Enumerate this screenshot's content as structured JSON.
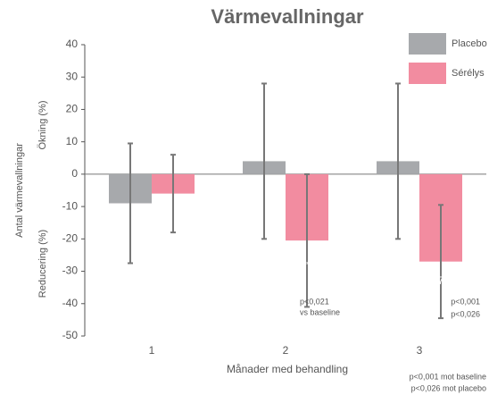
{
  "chart_data": {
    "type": "bar",
    "title": "Värmevallningar",
    "y_label": "Antal värmevallningar",
    "y_label_upper": "Ökning (%)",
    "y_label_lower": "Reducering (%)",
    "x_label": "Månader med behandling",
    "categories": [
      "1",
      "2",
      "3"
    ],
    "series": [
      {
        "name": "Placebo",
        "color": "#a7a9ac",
        "values": [
          -9,
          4,
          4
        ],
        "errors": [
          18.5,
          24,
          24
        ]
      },
      {
        "name": "Sérélys",
        "color": "#f28ca0",
        "values": [
          -6,
          -20.5,
          -27
        ],
        "errors": [
          12,
          20.5,
          17.5
        ],
        "value_labels": [
          null,
          "-20,5%",
          "-27%"
        ]
      }
    ],
    "ylim": [
      -50,
      40
    ],
    "yticks": [
      -50,
      -40,
      -30,
      -20,
      -10,
      0,
      10,
      20,
      30,
      40
    ],
    "annotations": [
      "p<0,021",
      "vs baseline",
      "p<0,001",
      "p<0,026",
      "p<0,001 mot baseline",
      "p<0,026 mot placebo"
    ],
    "legend": "top-right"
  }
}
